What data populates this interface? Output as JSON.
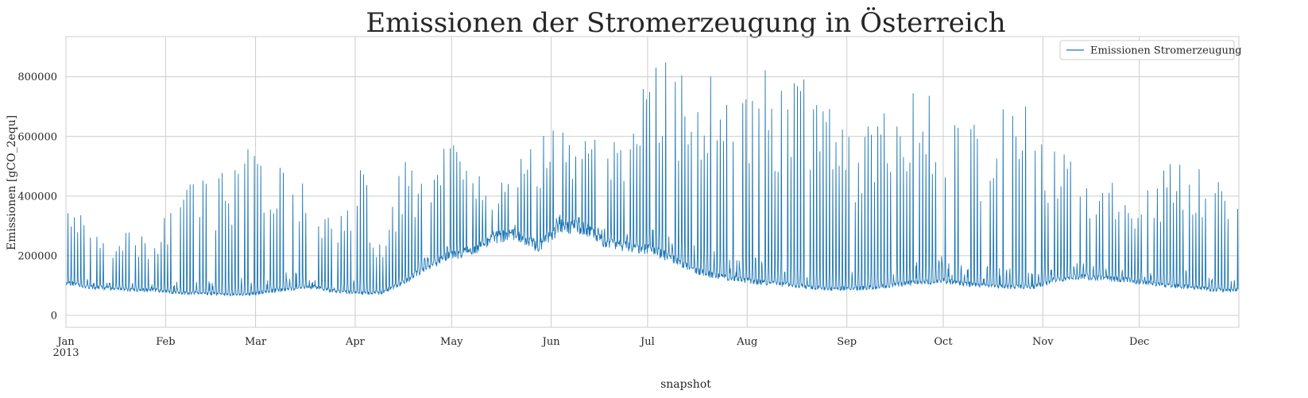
{
  "chart_data": {
    "type": "line",
    "title": "Emissionen der Stromerzeugung in Österreich",
    "xlabel": "snapshot",
    "ylabel": "Emissionen [gCO_2equ]",
    "xlim": [
      "2013-01-01",
      "2013-12-31"
    ],
    "ylim": [
      -40000,
      935000
    ],
    "y_ticks": [
      0,
      200000,
      400000,
      600000,
      800000
    ],
    "y_tick_labels": [
      "0",
      "200000",
      "400000",
      "600000",
      "800000"
    ],
    "x_ticks": [
      {
        "date": "2013-01-01",
        "label": "Jan",
        "sublabel": "2013"
      },
      {
        "date": "2013-02-01",
        "label": "Feb"
      },
      {
        "date": "2013-03-01",
        "label": "Mar"
      },
      {
        "date": "2013-04-01",
        "label": "Apr"
      },
      {
        "date": "2013-05-01",
        "label": "May"
      },
      {
        "date": "2013-06-01",
        "label": "Jun"
      },
      {
        "date": "2013-07-01",
        "label": "Jul"
      },
      {
        "date": "2013-08-01",
        "label": "Aug"
      },
      {
        "date": "2013-09-01",
        "label": "Sep"
      },
      {
        "date": "2013-10-01",
        "label": "Oct"
      },
      {
        "date": "2013-11-01",
        "label": "Nov"
      },
      {
        "date": "2013-12-01",
        "label": "Dec"
      }
    ],
    "grid": true,
    "legend_position": "top-right",
    "series": [
      {
        "name": "Emissionen Stromerzeugung",
        "color": "#1f77b4",
        "x": [
          "2013-01-01",
          "2013-01-08",
          "2013-01-15",
          "2013-01-22",
          "2013-01-29",
          "2013-02-05",
          "2013-02-12",
          "2013-02-19",
          "2013-02-26",
          "2013-03-05",
          "2013-03-12",
          "2013-03-19",
          "2013-03-26",
          "2013-04-02",
          "2013-04-09",
          "2013-04-16",
          "2013-04-23",
          "2013-04-30",
          "2013-05-07",
          "2013-05-14",
          "2013-05-21",
          "2013-05-28",
          "2013-06-04",
          "2013-06-11",
          "2013-06-18",
          "2013-06-25",
          "2013-07-02",
          "2013-07-09",
          "2013-07-16",
          "2013-07-23",
          "2013-07-30",
          "2013-08-06",
          "2013-08-13",
          "2013-08-20",
          "2013-08-27",
          "2013-09-03",
          "2013-09-10",
          "2013-09-17",
          "2013-09-24",
          "2013-10-01",
          "2013-10-08",
          "2013-10-15",
          "2013-10-22",
          "2013-10-29",
          "2013-11-05",
          "2013-11-12",
          "2013-11-19",
          "2013-11-26",
          "2013-12-03",
          "2013-12-10",
          "2013-12-17",
          "2013-12-24",
          "2013-12-31"
        ],
        "base": [
          110000,
          95000,
          90000,
          85000,
          85000,
          75000,
          75000,
          70000,
          70000,
          80000,
          90000,
          95000,
          80000,
          75000,
          75000,
          110000,
          160000,
          200000,
          215000,
          260000,
          270000,
          230000,
          300000,
          295000,
          240000,
          230000,
          220000,
          190000,
          150000,
          130000,
          120000,
          110000,
          105000,
          95000,
          90000,
          90000,
          95000,
          105000,
          110000,
          115000,
          105000,
          100000,
          95000,
          95000,
          120000,
          130000,
          125000,
          120000,
          110000,
          100000,
          95000,
          85000,
          85000
        ],
        "peak": [
          360000,
          330000,
          280000,
          300000,
          240000,
          470000,
          450000,
          480000,
          560000,
          600000,
          580000,
          420000,
          330000,
          570000,
          250000,
          530000,
          460000,
          600000,
          520000,
          440000,
          580000,
          600000,
          640000,
          580000,
          650000,
          650000,
          880000,
          860000,
          830000,
          860000,
          870000,
          850000,
          830000,
          800000,
          690000,
          620000,
          760000,
          740000,
          770000,
          820000,
          650000,
          640000,
          720000,
          690000,
          570000,
          540000,
          500000,
          500000,
          420000,
          540000,
          560000,
          500000,
          460000
        ]
      }
    ]
  }
}
